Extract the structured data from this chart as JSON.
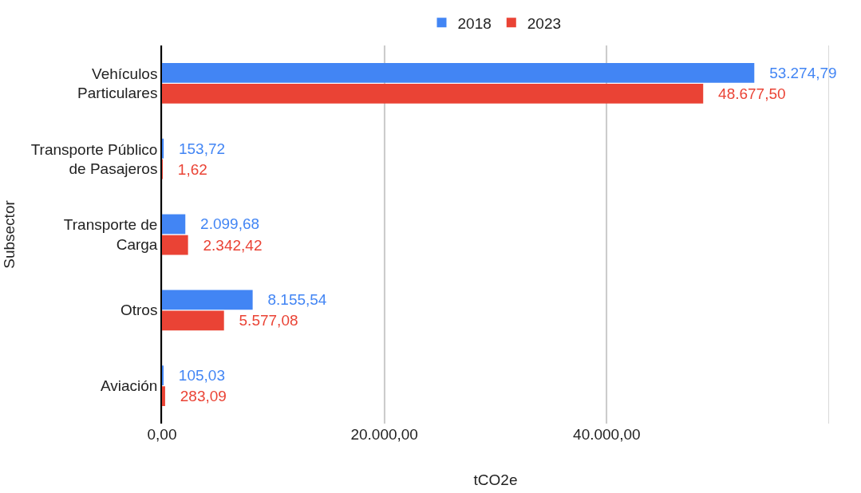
{
  "chart_data": {
    "type": "bar",
    "orientation": "horizontal",
    "xlabel": "tCO2e",
    "ylabel": "Subsector",
    "categories": [
      "Vehículos Particulares",
      "Transporte Público de Pasajeros",
      "Transporte de Carga",
      "Otros",
      "Aviación"
    ],
    "series": [
      {
        "name": "2018",
        "color": "#4285f4",
        "values": [
          53274.79,
          153.72,
          2099.68,
          8155.54,
          105.03
        ],
        "value_labels": [
          "53.274,79",
          "153,72",
          "2.099,68",
          "8.155,54",
          "105,03"
        ]
      },
      {
        "name": "2023",
        "color": "#ea4335",
        "values": [
          48677.5,
          1.62,
          2342.42,
          5577.08,
          283.09
        ],
        "value_labels": [
          "48.677,50",
          "1,62",
          "2.342,42",
          "5.577,08",
          "283,09"
        ]
      }
    ],
    "xlim": [
      0,
      60000
    ],
    "xticks": [
      {
        "value": 0,
        "label": "0,00"
      },
      {
        "value": 20000,
        "label": "20.000,00"
      },
      {
        "value": 40000,
        "label": "40.000,00"
      },
      {
        "value": 60000,
        "label": null
      }
    ],
    "grid": "x",
    "legend": "top"
  }
}
